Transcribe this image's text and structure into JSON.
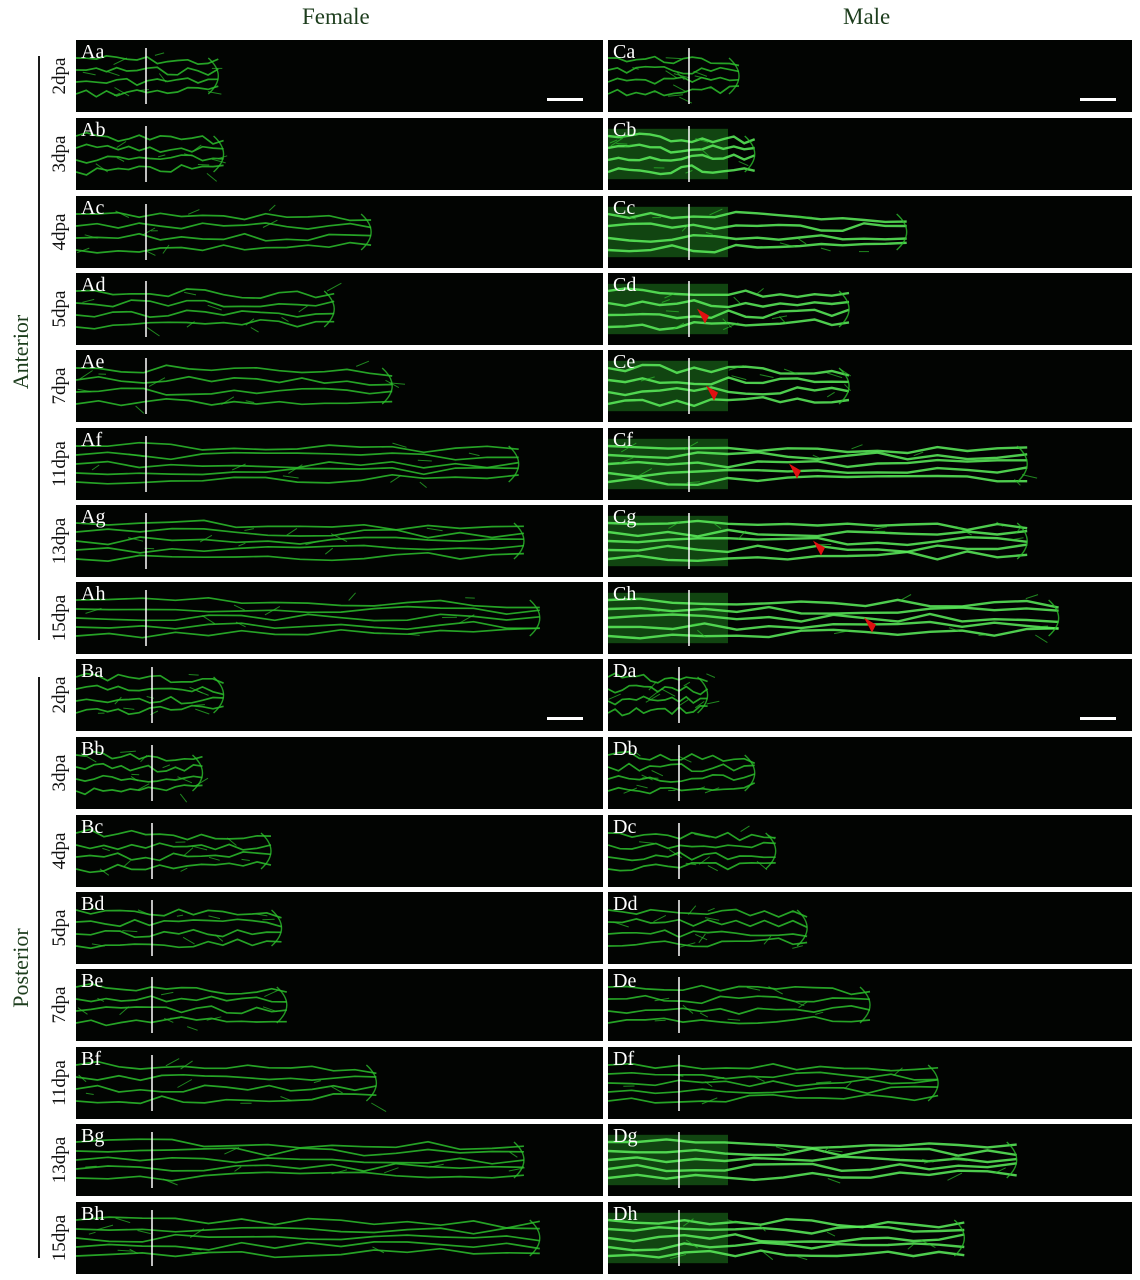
{
  "columns": [
    "Female",
    "Male"
  ],
  "groups": [
    "Anterior",
    "Posterior"
  ],
  "timepoints": [
    "2dpa",
    "3dpa",
    "4dpa",
    "5dpa",
    "7dpa",
    "11dpa",
    "13dpa",
    "15dpa"
  ],
  "panels": {
    "A": [
      "Aa",
      "Ab",
      "Ac",
      "Ad",
      "Ae",
      "Af",
      "Ag",
      "Ah"
    ],
    "B": [
      "Ba",
      "Bb",
      "Bc",
      "Bd",
      "Be",
      "Bf",
      "Bg",
      "Bh"
    ],
    "C": [
      "Ca",
      "Cb",
      "Cc",
      "Cd",
      "Ce",
      "Cf",
      "Cg",
      "Ch"
    ],
    "D": [
      "Da",
      "Db",
      "Dc",
      "Dd",
      "De",
      "Df",
      "Dg",
      "Dh"
    ]
  },
  "colors": {
    "vessel": "#2dbf2d",
    "vessel_bright": "#5cf05c",
    "arrowhead": "#e01010",
    "panel_bg": "#020402",
    "marker_line": "#ffffff"
  }
}
